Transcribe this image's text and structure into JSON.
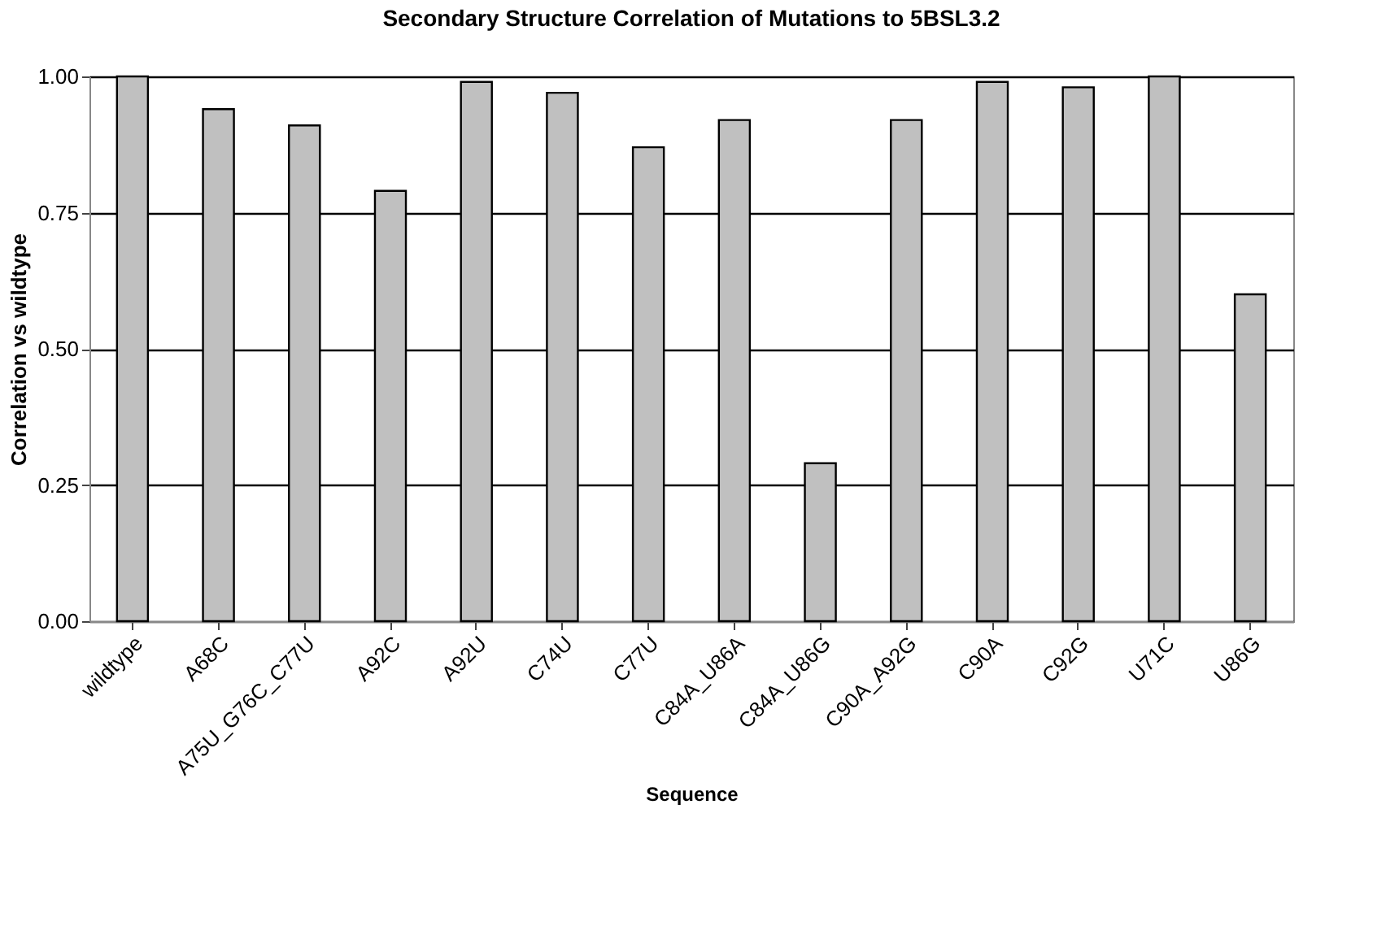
{
  "chart_data": {
    "type": "bar",
    "title": "Secondary Structure Correlation of Mutations to 5BSL3.2",
    "xlabel": "Sequence",
    "ylabel": "Correlation vs wildtype",
    "categories": [
      "wildtype",
      "A68C",
      "A75U_G76C_C77U",
      "A92C",
      "A92U",
      "C74U",
      "C77U",
      "C84A_U86A",
      "C84A_U86G",
      "C90A_A92G",
      "C90A",
      "C92G",
      "U71C",
      "U86G"
    ],
    "values": [
      1.0,
      0.94,
      0.91,
      0.79,
      0.99,
      0.97,
      0.87,
      0.92,
      0.29,
      0.92,
      0.99,
      0.98,
      1.0,
      0.6
    ],
    "color": "#c0c0c0",
    "ylim": [
      0,
      1
    ],
    "yticks": [
      {
        "value": 0,
        "label": "0.00"
      },
      {
        "value": 0.25,
        "label": "0.25"
      },
      {
        "value": 0.5,
        "label": "0.50"
      },
      {
        "value": 0.75,
        "label": "0.75"
      },
      {
        "value": 1,
        "label": "1.00"
      }
    ],
    "grid": "y"
  }
}
